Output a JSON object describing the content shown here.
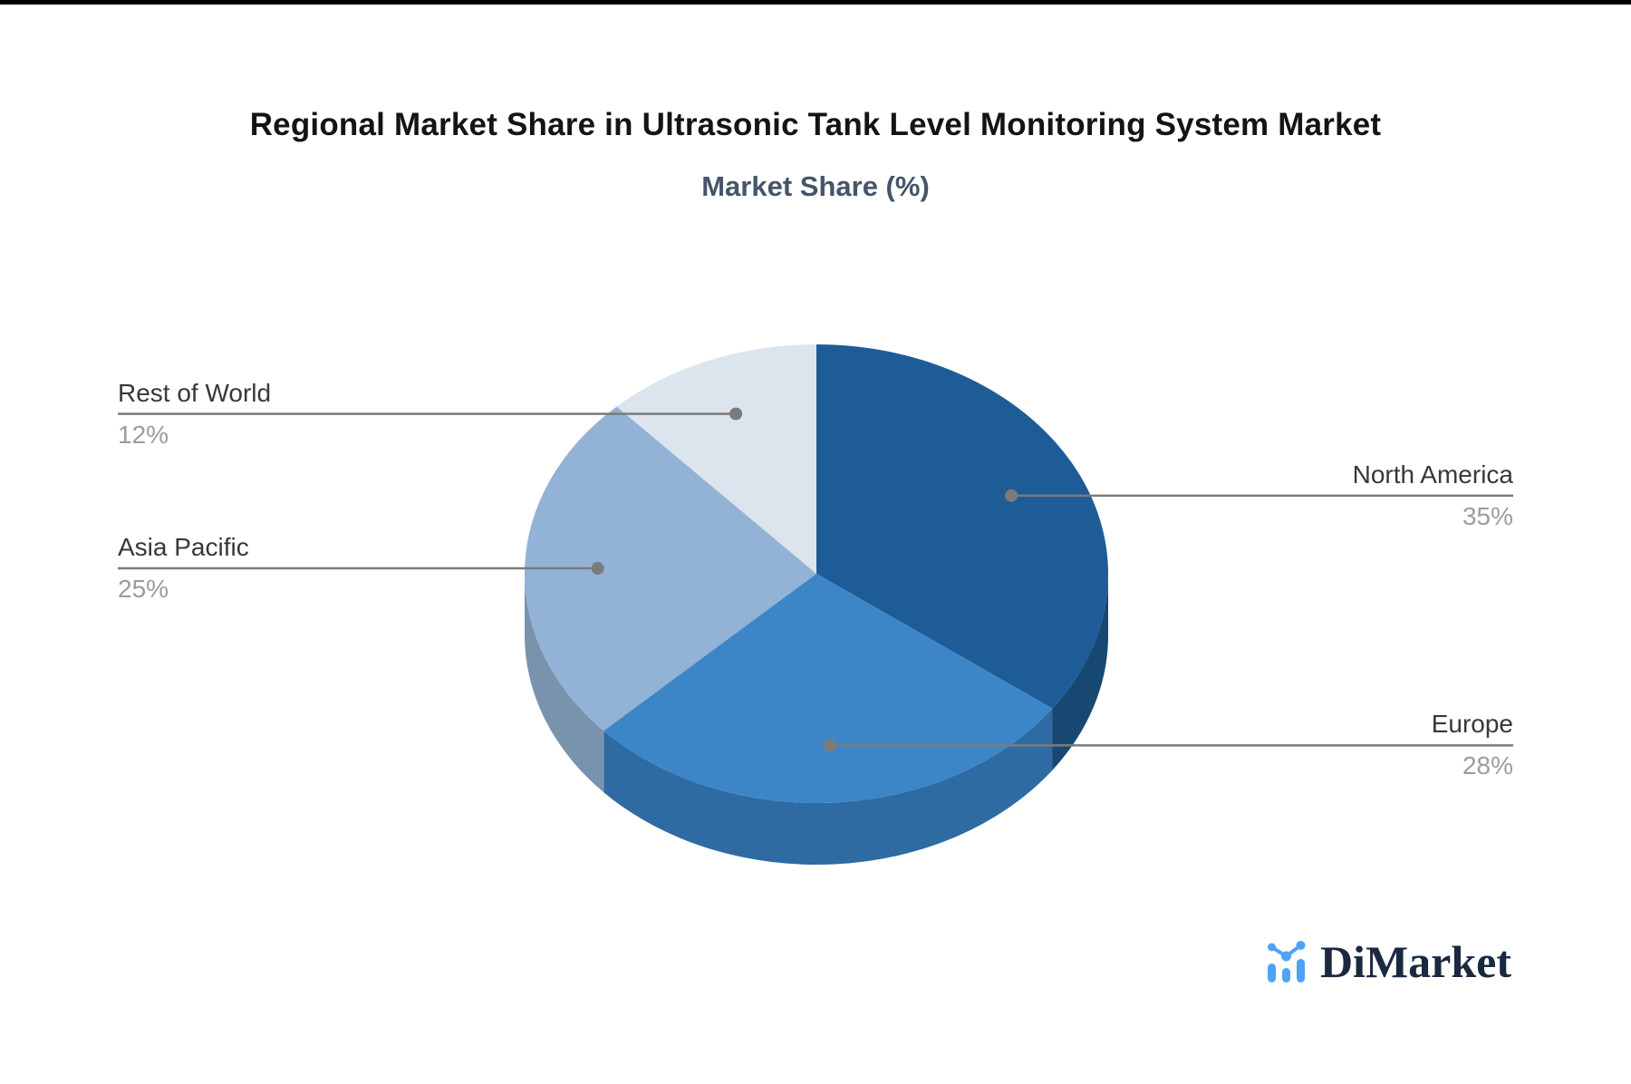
{
  "page": {
    "top_border_color": "#000000",
    "background": "#ffffff"
  },
  "header": {
    "title": "Regional Market Share in Ultrasonic Tank Level Monitoring System Market",
    "subtitle": "Market Share (%)",
    "title_color": "#141414",
    "subtitle_color": "#45556A"
  },
  "chart_data": {
    "type": "pie",
    "style": "3d",
    "title": "Regional Market Share in Ultrasonic Tank Level Monitoring System Market",
    "subtitle": "Market Share (%)",
    "unit": "%",
    "direction": "clockwise",
    "start_angle": "top",
    "legend": "none",
    "slices": [
      {
        "label": "North America",
        "value": 35,
        "percent_label": "35%",
        "color": "#1E5C97",
        "side_color": "#174872"
      },
      {
        "label": "Europe",
        "value": 28,
        "percent_label": "28%",
        "color": "#3C86C8",
        "side_color": "#2E6BA3"
      },
      {
        "label": "Asia Pacific",
        "value": 25,
        "percent_label": "25%",
        "color": "#92B2D6",
        "side_color": "#7A93AD"
      },
      {
        "label": "Rest of World",
        "value": 12,
        "percent_label": "12%",
        "color": "#DCE4EE"
      }
    ]
  },
  "leader": {
    "color": "#7B7B7B",
    "label_color": "#383838",
    "percent_color": "#9C9C9C"
  },
  "logo": {
    "text": "DiMarket",
    "icon": "bar-line-chart-icon",
    "icon_color": "#4DA3F7",
    "text_color": "#1A2940"
  }
}
